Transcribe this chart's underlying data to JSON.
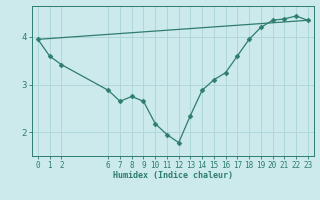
{
  "xlabel": "Humidex (Indice chaleur)",
  "bg_color": "#cce9eb",
  "grid_color": "#b0d8dc",
  "line_color": "#2e7d6e",
  "xlim": [
    -0.5,
    23.5
  ],
  "ylim": [
    1.5,
    4.65
  ],
  "xticks": [
    0,
    1,
    2,
    6,
    7,
    8,
    9,
    10,
    11,
    12,
    13,
    14,
    15,
    16,
    17,
    18,
    19,
    20,
    21,
    22,
    23
  ],
  "yticks": [
    2,
    3,
    4
  ],
  "curve_x": [
    0,
    1,
    2,
    6,
    7,
    8,
    9,
    10,
    11,
    12,
    13,
    14,
    15,
    16,
    17,
    18,
    19,
    20,
    21,
    22,
    23
  ],
  "curve_y": [
    3.95,
    3.6,
    3.42,
    2.88,
    2.65,
    2.75,
    2.65,
    2.18,
    1.95,
    1.78,
    2.35,
    2.88,
    3.1,
    3.25,
    3.6,
    3.95,
    4.2,
    4.35,
    4.38,
    4.44,
    4.35
  ],
  "line_x": [
    0,
    23
  ],
  "line_y": [
    3.95,
    4.35
  ],
  "marker_size": 2.5,
  "linewidth": 0.9,
  "xlabel_fontsize": 6,
  "tick_fontsize": 5.5,
  "ytick_fontsize": 6.5
}
